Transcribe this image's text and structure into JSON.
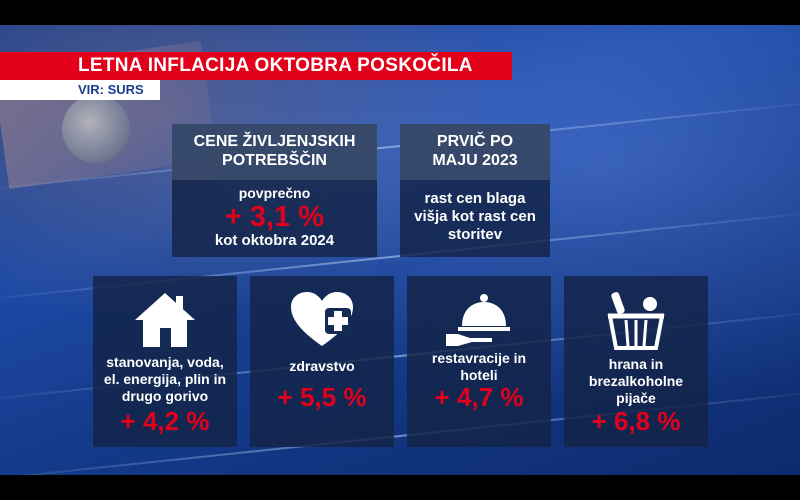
{
  "header": {
    "title": "LETNA INFLACIJA OKTOBRA POSKOČILA",
    "source": "VIR: SURS"
  },
  "summary_panels": [
    {
      "heading": "CENE ŽIVLJENJSKIH POTREBŠČIN",
      "line1": "povprečno",
      "value": "+ 3,1 %",
      "line2": "kot oktobra 2024"
    },
    {
      "heading": "PRVIČ PO MAJU 2023",
      "text": "rast cen blaga višja kot rast cen storitev"
    }
  ],
  "categories": [
    {
      "icon": "house-icon",
      "label": "stanovanja, voda, el. energija, plin in drugo gorivo",
      "value": "+ 4,2 %"
    },
    {
      "icon": "heart-plus-icon",
      "label": "zdravstvo",
      "value": "+ 5,5 %"
    },
    {
      "icon": "cloche-icon",
      "label": "restavracije in hoteli",
      "value": "+ 4,7 %"
    },
    {
      "icon": "basket-icon",
      "label": "hrana in brezalkoholne pijače",
      "value": "+ 6,8 %"
    }
  ],
  "colors": {
    "accent_red": "#e3001b",
    "background_blue": "#1e4aa6",
    "panel_dark": "#122346"
  }
}
